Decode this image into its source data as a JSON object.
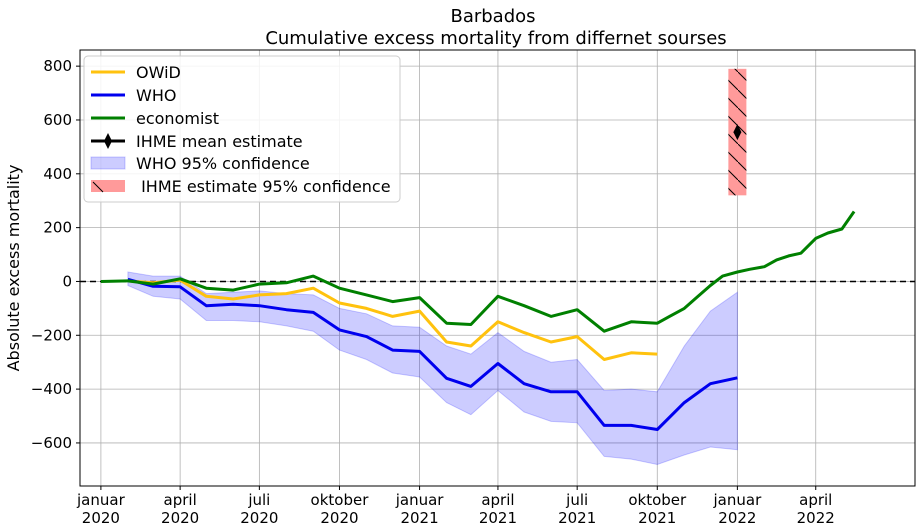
{
  "chart_data": {
    "type": "line",
    "title": "Barbados",
    "subtitle": "Cumulative excess mortality from differnet sourses",
    "ylabel": "Absolute excess mortality",
    "xlabel": "",
    "ylim": [
      -760,
      860
    ],
    "xlim": [
      "2019-12-08",
      "2022-07-24"
    ],
    "yticks": [
      -600,
      -400,
      -200,
      0,
      200,
      400,
      600,
      800
    ],
    "ytick_labels": [
      "−600",
      "−400",
      "−200",
      "0",
      "200",
      "400",
      "600",
      "800"
    ],
    "xticks": [
      {
        "date": "2020-01-01",
        "label1": "januar",
        "label2": "2020"
      },
      {
        "date": "2020-04-01",
        "label1": "april",
        "label2": "2020"
      },
      {
        "date": "2020-07-01",
        "label1": "juli",
        "label2": "2020"
      },
      {
        "date": "2020-10-01",
        "label1": "oktober",
        "label2": "2020"
      },
      {
        "date": "2021-01-01",
        "label1": "januar",
        "label2": "2021"
      },
      {
        "date": "2021-04-01",
        "label1": "april",
        "label2": "2021"
      },
      {
        "date": "2021-07-01",
        "label1": "juli",
        "label2": "2021"
      },
      {
        "date": "2021-10-01",
        "label1": "oktober",
        "label2": "2021"
      },
      {
        "date": "2022-01-01",
        "label1": "januar",
        "label2": "2022"
      },
      {
        "date": "2022-04-01",
        "label1": "april",
        "label2": "2022"
      }
    ],
    "grid": true,
    "legend_position": "top-left",
    "zero_line": {
      "y": 0,
      "style": "dashed",
      "color": "#000000"
    },
    "series": [
      {
        "name": "OWiD",
        "color": "#ffc20e",
        "x": [
          "2020-02-01",
          "2020-03-01",
          "2020-04-01",
          "2020-05-01",
          "2020-06-01",
          "2020-07-01",
          "2020-08-01",
          "2020-09-01",
          "2020-10-01",
          "2020-11-01",
          "2020-12-01",
          "2021-01-01",
          "2021-02-01",
          "2021-03-01",
          "2021-04-01",
          "2021-05-01",
          "2021-06-01",
          "2021-07-01",
          "2021-08-01",
          "2021-09-01",
          "2021-10-01"
        ],
        "y": [
          2,
          -5,
          5,
          -55,
          -65,
          -50,
          -45,
          -25,
          -80,
          -100,
          -130,
          -110,
          -225,
          -240,
          -150,
          -190,
          -225,
          -205,
          -290,
          -265,
          -270
        ]
      },
      {
        "name": "WHO",
        "color": "#0000ee",
        "x": [
          "2020-02-01",
          "2020-03-01",
          "2020-04-01",
          "2020-05-01",
          "2020-06-01",
          "2020-07-01",
          "2020-08-01",
          "2020-09-01",
          "2020-10-01",
          "2020-11-01",
          "2020-12-01",
          "2021-01-01",
          "2021-02-01",
          "2021-03-01",
          "2021-04-01",
          "2021-05-01",
          "2021-06-01",
          "2021-07-01",
          "2021-08-01",
          "2021-09-01",
          "2021-10-01",
          "2021-11-01",
          "2021-12-01",
          "2022-01-01"
        ],
        "y": [
          8,
          -18,
          -20,
          -90,
          -85,
          -90,
          -105,
          -115,
          -180,
          -205,
          -255,
          -260,
          -360,
          -390,
          -305,
          -380,
          -410,
          -410,
          -535,
          -535,
          -550,
          -450,
          -380,
          -358
        ]
      },
      {
        "name": "economist",
        "color": "#008000",
        "x": [
          "2020-01-01",
          "2020-02-01",
          "2020-03-01",
          "2020-04-01",
          "2020-05-01",
          "2020-06-01",
          "2020-07-01",
          "2020-08-01",
          "2020-09-01",
          "2020-10-01",
          "2020-11-01",
          "2020-12-01",
          "2021-01-01",
          "2021-02-01",
          "2021-03-01",
          "2021-04-01",
          "2021-05-01",
          "2021-06-01",
          "2021-07-01",
          "2021-08-01",
          "2021-09-01",
          "2021-10-01",
          "2021-10-15",
          "2021-11-01",
          "2021-11-15",
          "2021-12-01",
          "2021-12-15",
          "2022-01-01",
          "2022-01-15",
          "2022-02-01",
          "2022-02-15",
          "2022-03-01",
          "2022-03-15",
          "2022-04-01",
          "2022-04-15",
          "2022-05-01",
          "2022-05-15"
        ],
        "y": [
          0,
          2,
          -10,
          10,
          -25,
          -32,
          -10,
          -5,
          20,
          -25,
          -50,
          -75,
          -60,
          -155,
          -160,
          -55,
          -90,
          -130,
          -105,
          -185,
          -150,
          -155,
          -130,
          -100,
          -60,
          -15,
          20,
          35,
          45,
          55,
          80,
          95,
          105,
          160,
          180,
          195,
          260
        ]
      }
    ],
    "who_ci": {
      "name": "WHO 95% confidence",
      "color": "#0000ff",
      "alpha": 0.2,
      "x": [
        "2020-02-01",
        "2020-03-01",
        "2020-04-01",
        "2020-05-01",
        "2020-06-01",
        "2020-07-01",
        "2020-08-01",
        "2020-09-01",
        "2020-10-01",
        "2020-11-01",
        "2020-12-01",
        "2021-01-01",
        "2021-02-01",
        "2021-03-01",
        "2021-04-01",
        "2021-05-01",
        "2021-06-01",
        "2021-07-01",
        "2021-08-01",
        "2021-09-01",
        "2021-10-01",
        "2021-11-01",
        "2021-12-01",
        "2022-01-01"
      ],
      "upper": [
        35,
        20,
        20,
        -45,
        -40,
        -35,
        -45,
        -50,
        -100,
        -120,
        -165,
        -170,
        -240,
        -270,
        -190,
        -260,
        -300,
        -290,
        -405,
        -400,
        -410,
        -240,
        -110,
        -40
      ],
      "lower": [
        -15,
        -55,
        -65,
        -145,
        -145,
        -150,
        -165,
        -185,
        -255,
        -290,
        -340,
        -355,
        -450,
        -495,
        -405,
        -485,
        -520,
        -525,
        -650,
        -660,
        -680,
        -645,
        -615,
        -625
      ]
    },
    "ihme": {
      "mean_name": "IHME mean estimate",
      "ci_name": " IHME estimate 95% confidence",
      "date": "2022-01-01",
      "mean": 555,
      "lower": 320,
      "upper": 790,
      "mean_color": "#000000",
      "ci_color": "#ff9a9a"
    }
  }
}
